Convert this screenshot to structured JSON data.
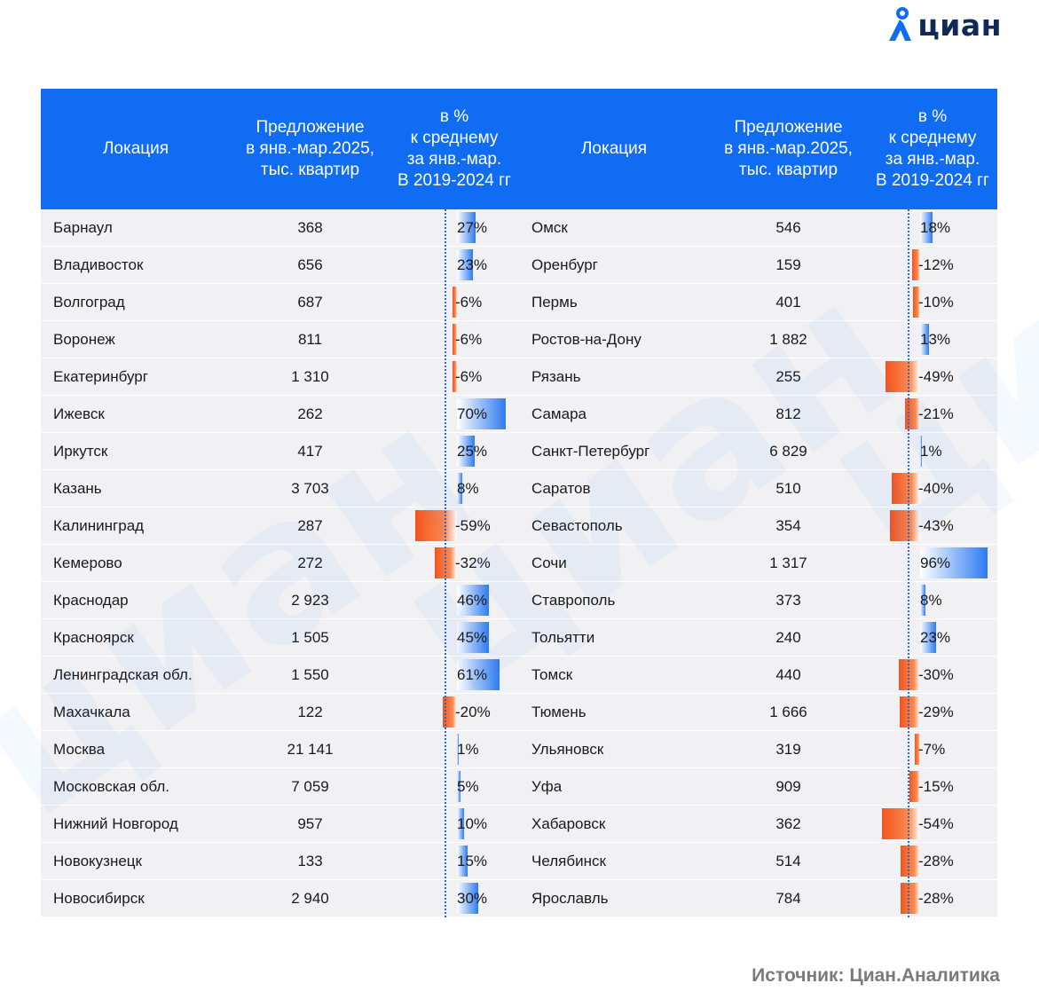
{
  "brand": {
    "name": "циан",
    "color": "#0f6cf3",
    "dark": "#0f2a56"
  },
  "watermark_text": "циан",
  "header": {
    "location": "Локация",
    "offer": [
      "Предложение",
      "в янв.-мар.2025,",
      "тыс. квартир"
    ],
    "percent": [
      "в %",
      "к среднему",
      "за янв.-мар.",
      "В 2019-2024 гг"
    ]
  },
  "source": "Источник: Циан.Аналитика",
  "colors": {
    "positive": "#2d7bf0",
    "negative": "#f2541f",
    "header_bg": "#0f6cf3",
    "row_bg": "#f1f1f3"
  },
  "chart_data": {
    "type": "table",
    "title": "",
    "columns": [
      "Локация",
      "Предложение в янв.-мар.2025, тыс. квартир",
      "в % к среднему за янв.-мар. В 2019-2024 гг"
    ],
    "left": [
      {
        "loc": "Барнаул",
        "offer": "368",
        "pct": 27,
        "pct_label": "27%"
      },
      {
        "loc": "Владивосток",
        "offer": "656",
        "pct": 23,
        "pct_label": "23%"
      },
      {
        "loc": "Волгоград",
        "offer": "687",
        "pct": -6,
        "pct_label": "-6%"
      },
      {
        "loc": "Воронеж",
        "offer": "811",
        "pct": -6,
        "pct_label": "-6%"
      },
      {
        "loc": "Екатеринбург",
        "offer": "1 310",
        "pct": -6,
        "pct_label": "-6%"
      },
      {
        "loc": "Ижевск",
        "offer": "262",
        "pct": 70,
        "pct_label": "70%"
      },
      {
        "loc": "Иркутск",
        "offer": "417",
        "pct": 25,
        "pct_label": "25%"
      },
      {
        "loc": "Казань",
        "offer": "3 703",
        "pct": 8,
        "pct_label": "8%"
      },
      {
        "loc": "Калининград",
        "offer": "287",
        "pct": -59,
        "pct_label": "-59%"
      },
      {
        "loc": "Кемерово",
        "offer": "272",
        "pct": -32,
        "pct_label": "-32%"
      },
      {
        "loc": "Краснодар",
        "offer": "2 923",
        "pct": 46,
        "pct_label": "46%"
      },
      {
        "loc": "Красноярск",
        "offer": "1 505",
        "pct": 45,
        "pct_label": "45%"
      },
      {
        "loc": "Ленинградская обл.",
        "offer": "1 550",
        "pct": 61,
        "pct_label": "61%"
      },
      {
        "loc": "Махачкала",
        "offer": "122",
        "pct": -20,
        "pct_label": "-20%"
      },
      {
        "loc": "Москва",
        "offer": "21 141",
        "pct": 1,
        "pct_label": "1%"
      },
      {
        "loc": "Московская обл.",
        "offer": "7 059",
        "pct": 5,
        "pct_label": "5%"
      },
      {
        "loc": "Нижний Новгород",
        "offer": "957",
        "pct": 10,
        "pct_label": "10%"
      },
      {
        "loc": "Новокузнецк",
        "offer": "133",
        "pct": 15,
        "pct_label": "15%"
      },
      {
        "loc": "Новосибирск",
        "offer": "2 940",
        "pct": 30,
        "pct_label": "30%"
      }
    ],
    "right": [
      {
        "loc": "Омск",
        "offer": "546",
        "pct": 18,
        "pct_label": "18%"
      },
      {
        "loc": "Оренбург",
        "offer": "159",
        "pct": -12,
        "pct_label": "-12%"
      },
      {
        "loc": "Пермь",
        "offer": "401",
        "pct": -10,
        "pct_label": "-10%"
      },
      {
        "loc": "Ростов-на-Дону",
        "offer": "1 882",
        "pct": 13,
        "pct_label": "13%"
      },
      {
        "loc": "Рязань",
        "offer": "255",
        "pct": -49,
        "pct_label": "-49%"
      },
      {
        "loc": "Самара",
        "offer": "812",
        "pct": -21,
        "pct_label": "-21%"
      },
      {
        "loc": "Санкт-Петербург",
        "offer": "6 829",
        "pct": 1,
        "pct_label": "1%"
      },
      {
        "loc": "Саратов",
        "offer": "510",
        "pct": -40,
        "pct_label": "-40%"
      },
      {
        "loc": "Севастополь",
        "offer": "354",
        "pct": -43,
        "pct_label": "-43%"
      },
      {
        "loc": "Сочи",
        "offer": "1 317",
        "pct": 96,
        "pct_label": "96%"
      },
      {
        "loc": "Ставрополь",
        "offer": "373",
        "pct": 8,
        "pct_label": "8%"
      },
      {
        "loc": "Тольятти",
        "offer": "240",
        "pct": 23,
        "pct_label": "23%"
      },
      {
        "loc": "Томск",
        "offer": "440",
        "pct": -30,
        "pct_label": "-30%"
      },
      {
        "loc": "Тюмень",
        "offer": "1 666",
        "pct": -29,
        "pct_label": "-29%"
      },
      {
        "loc": "Ульяновск",
        "offer": "319",
        "pct": -7,
        "pct_label": "-7%"
      },
      {
        "loc": "Уфа",
        "offer": "909",
        "pct": -15,
        "pct_label": "-15%"
      },
      {
        "loc": "Хабаровск",
        "offer": "362",
        "pct": -54,
        "pct_label": "-54%"
      },
      {
        "loc": "Челябинск",
        "offer": "514",
        "pct": -28,
        "pct_label": "-28%"
      },
      {
        "loc": "Ярославль",
        "offer": "784",
        "pct": -28,
        "pct_label": "-28%"
      }
    ]
  }
}
